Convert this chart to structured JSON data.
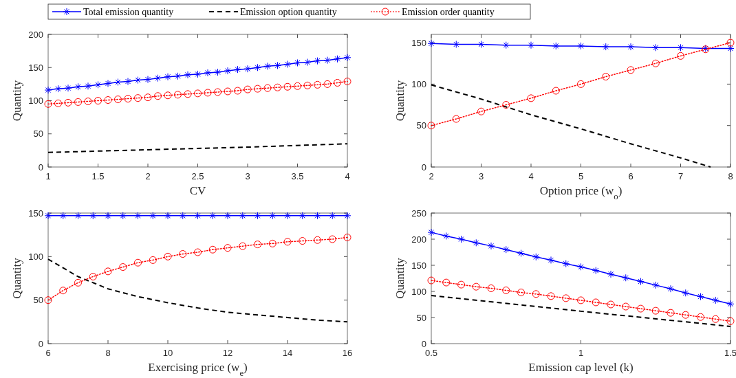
{
  "chart_data": [
    {
      "type": "line",
      "xlabel": "CV",
      "ylabel": "Quantity",
      "xlim": [
        1,
        4
      ],
      "ylim": [
        0,
        200
      ],
      "xticks": [
        1,
        1.5,
        2,
        2.5,
        3,
        3.5,
        4
      ],
      "yticks": [
        0,
        50,
        100,
        150,
        200
      ],
      "legend": "top",
      "x": [
        1,
        1.1,
        1.2,
        1.3,
        1.4,
        1.5,
        1.6,
        1.7,
        1.8,
        1.9,
        2,
        2.1,
        2.2,
        2.3,
        2.4,
        2.5,
        2.6,
        2.7,
        2.8,
        2.9,
        3,
        3.1,
        3.2,
        3.3,
        3.4,
        3.5,
        3.6,
        3.7,
        3.8,
        3.9,
        4
      ],
      "series": [
        {
          "name": "Total emission quantity",
          "color": "#0000ff",
          "marker": "cross",
          "line_style": "solid",
          "values": [
            116,
            118,
            119,
            121,
            122,
            124,
            126,
            128,
            129,
            131,
            132,
            134,
            136,
            137,
            139,
            140,
            142,
            143,
            145,
            147,
            148,
            150,
            152,
            153,
            155,
            157,
            158,
            160,
            161,
            163,
            165
          ]
        },
        {
          "name": "Emission option quantity",
          "color": "#000000",
          "marker": "none",
          "line_style": "dashed",
          "x": [
            1,
            2,
            3,
            4
          ],
          "values": [
            22,
            26,
            30,
            35
          ]
        },
        {
          "name": "Emission order quantity",
          "color": "#ff0000",
          "marker": "circle",
          "line_style": "dotted",
          "values": [
            95,
            96,
            97,
            98,
            99,
            100,
            101,
            102,
            103,
            104,
            105,
            107,
            108,
            109,
            110,
            111,
            112,
            113,
            114,
            115,
            117,
            118,
            119,
            120,
            121,
            122,
            123,
            124,
            125,
            127,
            129
          ]
        }
      ]
    },
    {
      "type": "line",
      "xlabel": "Option price (w$_{o}$)",
      "ylabel": "Quantity",
      "xlim": [
        2,
        8
      ],
      "ylim": [
        0,
        160
      ],
      "xticks": [
        2,
        3,
        4,
        5,
        6,
        7,
        8
      ],
      "yticks": [
        0,
        50,
        100,
        150
      ],
      "x": [
        2,
        2.5,
        3,
        3.5,
        4,
        4.5,
        5,
        5.5,
        6,
        6.5,
        7,
        7.5,
        8
      ],
      "series": [
        {
          "color": "#0000ff",
          "marker": "cross",
          "line_style": "solid",
          "values": [
            149,
            148,
            148,
            147,
            147,
            146,
            146,
            145,
            145,
            144,
            144,
            143,
            143
          ]
        },
        {
          "color": "#000000",
          "marker": "none",
          "line_style": "dashed",
          "x": [
            2,
            3,
            4,
            5,
            6,
            7,
            7.6
          ],
          "values": [
            99,
            82,
            63,
            46,
            28,
            11,
            0
          ]
        },
        {
          "color": "#ff0000",
          "marker": "circle",
          "line_style": "dotted",
          "values": [
            50,
            58,
            67,
            75,
            83,
            92,
            100,
            109,
            117,
            125,
            134,
            142,
            150
          ]
        }
      ]
    },
    {
      "type": "line",
      "xlabel": "Exercising price (w$_{e}$)",
      "ylabel": "Quantity",
      "xlim": [
        6,
        16
      ],
      "ylim": [
        0,
        150
      ],
      "xticks": [
        6,
        8,
        10,
        12,
        14,
        16
      ],
      "yticks": [
        0,
        50,
        100,
        150
      ],
      "x": [
        6,
        6.5,
        7,
        7.5,
        8,
        8.5,
        9,
        9.5,
        10,
        10.5,
        11,
        11.5,
        12,
        12.5,
        13,
        13.5,
        14,
        14.5,
        15,
        15.5,
        16
      ],
      "series": [
        {
          "color": "#0000ff",
          "marker": "cross",
          "line_style": "solid",
          "values": [
            147,
            147,
            147,
            147,
            147,
            147,
            147,
            147,
            147,
            147,
            147,
            147,
            147,
            147,
            147,
            147,
            147,
            147,
            147,
            147,
            147
          ]
        },
        {
          "color": "#000000",
          "marker": "none",
          "line_style": "dashed",
          "x": [
            6,
            7,
            8,
            9,
            10,
            11,
            12,
            13,
            14,
            15,
            16
          ],
          "values": [
            97,
            77,
            63,
            54,
            47,
            41,
            36,
            33,
            30,
            27,
            25
          ]
        },
        {
          "color": "#ff0000",
          "marker": "circle",
          "line_style": "dotted",
          "values": [
            50,
            61,
            70,
            77,
            83,
            88,
            93,
            96,
            100,
            103,
            105,
            108,
            110,
            112,
            114,
            115,
            117,
            118,
            119,
            120,
            122
          ]
        }
      ]
    },
    {
      "type": "line",
      "xlabel": "Emission cap level (k)",
      "ylabel": "Quantity",
      "xlim": [
        0.5,
        1.5
      ],
      "ylim": [
        0,
        250
      ],
      "xticks": [
        0.5,
        1,
        1.5
      ],
      "yticks": [
        0,
        50,
        100,
        150,
        200,
        250
      ],
      "x": [
        0.5,
        0.55,
        0.6,
        0.65,
        0.7,
        0.75,
        0.8,
        0.85,
        0.9,
        0.95,
        1,
        1.05,
        1.1,
        1.15,
        1.2,
        1.25,
        1.3,
        1.35,
        1.4,
        1.45,
        1.5
      ],
      "series": [
        {
          "color": "#0000ff",
          "marker": "cross",
          "line_style": "solid",
          "values": [
            213,
            206,
            200,
            193,
            187,
            180,
            173,
            166,
            160,
            153,
            147,
            140,
            133,
            126,
            119,
            112,
            105,
            97,
            90,
            83,
            76
          ]
        },
        {
          "color": "#000000",
          "marker": "none",
          "line_style": "dashed",
          "x": [
            0.5,
            1,
            1.5
          ],
          "values": [
            92,
            62,
            33
          ]
        },
        {
          "color": "#ff0000",
          "marker": "circle",
          "line_style": "dotted",
          "values": [
            121,
            117,
            113,
            109,
            106,
            102,
            98,
            95,
            91,
            87,
            83,
            79,
            75,
            71,
            67,
            63,
            59,
            55,
            51,
            47,
            43
          ]
        }
      ]
    }
  ]
}
